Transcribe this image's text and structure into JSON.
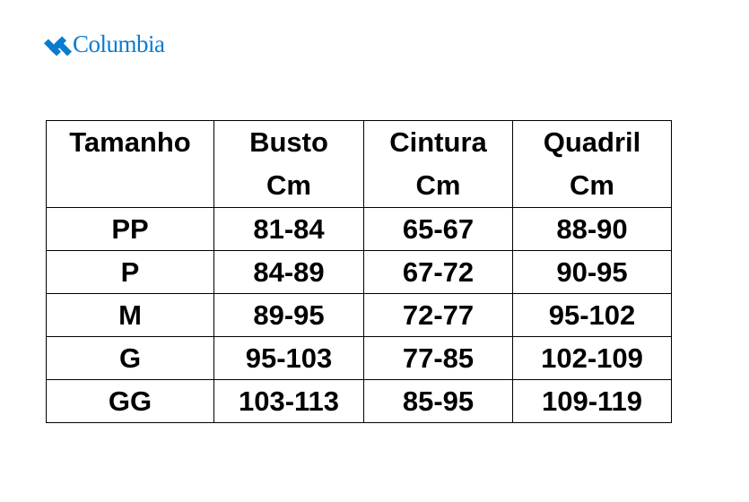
{
  "brand": {
    "name": "Columbia",
    "color": "#0a7ccf"
  },
  "table": {
    "headers": [
      {
        "line1": "Tamanho",
        "line2": ""
      },
      {
        "line1": "Busto",
        "line2": "Cm"
      },
      {
        "line1": "Cintura",
        "line2": "Cm"
      },
      {
        "line1": "Quadril",
        "line2": "Cm"
      }
    ],
    "rows": [
      [
        "PP",
        "81-84",
        "65-67",
        "88-90"
      ],
      [
        "P",
        "84-89",
        "67-72",
        "90-95"
      ],
      [
        "M",
        "89-95",
        "72-77",
        "95-102"
      ],
      [
        "G",
        "95-103",
        "77-85",
        "102-109"
      ],
      [
        "GG",
        "103-113",
        "85-95",
        "109-119"
      ]
    ]
  }
}
